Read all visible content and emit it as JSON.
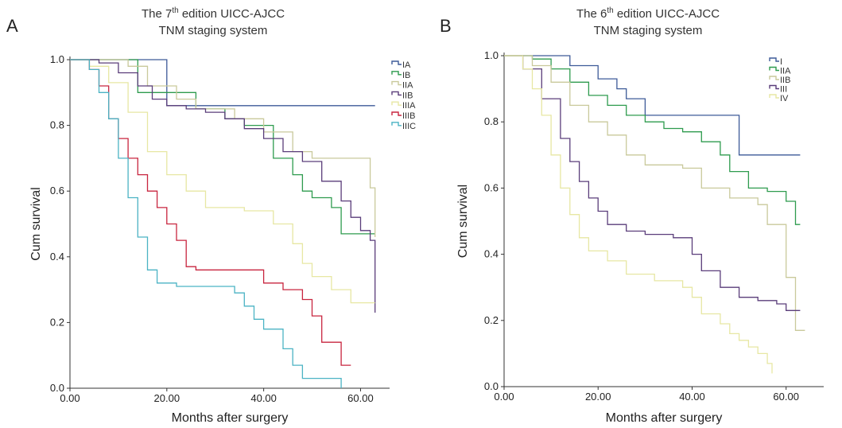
{
  "panels": [
    {
      "letter": "A",
      "title_line1_pre": "The 7",
      "title_sup": "th",
      "title_line1_post": " edition UICC-AJCC",
      "title_line2": "TNM staging system"
    },
    {
      "letter": "B",
      "title_line1_pre": "The 6",
      "title_sup": "th",
      "title_line1_post": " edition UICC-AJCC",
      "title_line2": "TNM staging system"
    }
  ],
  "chart_data": [
    {
      "type": "line",
      "xlabel": "Months after surgery",
      "ylabel": "Cum survival",
      "xlim": [
        0,
        66
      ],
      "ylim": [
        0,
        1.0
      ],
      "x_ticks": [
        "0.00",
        "20.00",
        "40.00",
        "60.00"
      ],
      "x_tick_values": [
        0,
        20,
        40,
        60
      ],
      "y_ticks": [
        "0.0",
        "0.2",
        "0.4",
        "0.6",
        "0.8",
        "1.0"
      ],
      "y_tick_values": [
        0,
        0.2,
        0.4,
        0.6,
        0.8,
        1.0
      ],
      "legend_position": "right",
      "series": [
        {
          "name": "IA",
          "color": "#3d5a98",
          "points": [
            [
              0,
              1.0
            ],
            [
              20,
              1.0
            ],
            [
              20,
              0.86
            ],
            [
              63,
              0.86
            ]
          ]
        },
        {
          "name": "IB",
          "color": "#2e9b4e",
          "points": [
            [
              0,
              1.0
            ],
            [
              14,
              1.0
            ],
            [
              14,
              0.9
            ],
            [
              26,
              0.9
            ],
            [
              26,
              0.85
            ],
            [
              32,
              0.82
            ],
            [
              36,
              0.8
            ],
            [
              42,
              0.8
            ],
            [
              42,
              0.7
            ],
            [
              46,
              0.65
            ],
            [
              48,
              0.6
            ],
            [
              50,
              0.58
            ],
            [
              54,
              0.55
            ],
            [
              56,
              0.47
            ],
            [
              63,
              0.47
            ]
          ]
        },
        {
          "name": "IIA",
          "color": "#c9c99b",
          "points": [
            [
              0,
              1.0
            ],
            [
              12,
              0.98
            ],
            [
              16,
              0.92
            ],
            [
              22,
              0.88
            ],
            [
              26,
              0.85
            ],
            [
              34,
              0.82
            ],
            [
              40,
              0.78
            ],
            [
              46,
              0.72
            ],
            [
              50,
              0.7
            ],
            [
              60,
              0.7
            ],
            [
              62,
              0.61
            ],
            [
              63,
              0.46
            ]
          ]
        },
        {
          "name": "IIB",
          "color": "#5a3d7a",
          "points": [
            [
              0,
              1.0
            ],
            [
              6,
              0.99
            ],
            [
              10,
              0.96
            ],
            [
              14,
              0.92
            ],
            [
              17,
              0.88
            ],
            [
              20,
              0.86
            ],
            [
              24,
              0.85
            ],
            [
              28,
              0.84
            ],
            [
              32,
              0.82
            ],
            [
              36,
              0.79
            ],
            [
              40,
              0.76
            ],
            [
              44,
              0.72
            ],
            [
              48,
              0.69
            ],
            [
              52,
              0.63
            ],
            [
              56,
              0.57
            ],
            [
              58,
              0.52
            ],
            [
              60,
              0.48
            ],
            [
              62,
              0.45
            ],
            [
              63,
              0.23
            ]
          ]
        },
        {
          "name": "IIIA",
          "color": "#e7e7a3",
          "points": [
            [
              0,
              1.0
            ],
            [
              4,
              0.98
            ],
            [
              8,
              0.93
            ],
            [
              12,
              0.84
            ],
            [
              16,
              0.72
            ],
            [
              20,
              0.65
            ],
            [
              24,
              0.6
            ],
            [
              28,
              0.55
            ],
            [
              36,
              0.54
            ],
            [
              40,
              0.54
            ],
            [
              42,
              0.5
            ],
            [
              46,
              0.44
            ],
            [
              48,
              0.38
            ],
            [
              50,
              0.34
            ],
            [
              54,
              0.3
            ],
            [
              58,
              0.26
            ],
            [
              63,
              0.26
            ]
          ]
        },
        {
          "name": "IIIB",
          "color": "#c8253f",
          "points": [
            [
              0,
              1.0
            ],
            [
              4,
              0.97
            ],
            [
              6,
              0.92
            ],
            [
              8,
              0.82
            ],
            [
              10,
              0.76
            ],
            [
              12,
              0.7
            ],
            [
              14,
              0.65
            ],
            [
              16,
              0.6
            ],
            [
              18,
              0.55
            ],
            [
              20,
              0.5
            ],
            [
              22,
              0.45
            ],
            [
              24,
              0.37
            ],
            [
              26,
              0.36
            ],
            [
              40,
              0.36
            ],
            [
              40,
              0.32
            ],
            [
              44,
              0.3
            ],
            [
              48,
              0.27
            ],
            [
              50,
              0.22
            ],
            [
              52,
              0.14
            ],
            [
              56,
              0.14
            ],
            [
              56,
              0.07
            ],
            [
              58,
              0.07
            ]
          ]
        },
        {
          "name": "IIIC",
          "color": "#4bb3c4",
          "points": [
            [
              0,
              1.0
            ],
            [
              4,
              0.97
            ],
            [
              6,
              0.9
            ],
            [
              8,
              0.82
            ],
            [
              10,
              0.7
            ],
            [
              12,
              0.58
            ],
            [
              14,
              0.46
            ],
            [
              16,
              0.36
            ],
            [
              18,
              0.32
            ],
            [
              22,
              0.31
            ],
            [
              30,
              0.31
            ],
            [
              34,
              0.29
            ],
            [
              36,
              0.25
            ],
            [
              38,
              0.21
            ],
            [
              40,
              0.18
            ],
            [
              44,
              0.12
            ],
            [
              46,
              0.07
            ],
            [
              48,
              0.03
            ],
            [
              56,
              0.03
            ],
            [
              56,
              0.0
            ]
          ]
        }
      ]
    },
    {
      "type": "line",
      "xlabel": "Months after surgery",
      "ylabel": "Cum survival",
      "xlim": [
        0,
        68
      ],
      "ylim": [
        0,
        1.0
      ],
      "x_ticks": [
        "0.00",
        "20.00",
        "40.00",
        "60.00"
      ],
      "x_tick_values": [
        0,
        20,
        40,
        60
      ],
      "y_ticks": [
        "0.0",
        "0.2",
        "0.4",
        "0.6",
        "0.8",
        "1.0"
      ],
      "y_tick_values": [
        0,
        0.2,
        0.4,
        0.6,
        0.8,
        1.0
      ],
      "legend_position": "top-right",
      "series": [
        {
          "name": "I",
          "color": "#3d5a98",
          "points": [
            [
              0,
              1.0
            ],
            [
              14,
              1.0
            ],
            [
              14,
              0.97
            ],
            [
              20,
              0.93
            ],
            [
              24,
              0.9
            ],
            [
              26,
              0.87
            ],
            [
              30,
              0.82
            ],
            [
              40,
              0.82
            ],
            [
              42,
              0.82
            ],
            [
              50,
              0.7
            ],
            [
              63,
              0.7
            ]
          ]
        },
        {
          "name": "IIA",
          "color": "#2e9b4e",
          "points": [
            [
              0,
              1.0
            ],
            [
              6,
              0.99
            ],
            [
              10,
              0.96
            ],
            [
              14,
              0.92
            ],
            [
              18,
              0.88
            ],
            [
              22,
              0.85
            ],
            [
              26,
              0.82
            ],
            [
              30,
              0.8
            ],
            [
              34,
              0.78
            ],
            [
              38,
              0.77
            ],
            [
              42,
              0.74
            ],
            [
              46,
              0.7
            ],
            [
              48,
              0.65
            ],
            [
              52,
              0.6
            ],
            [
              56,
              0.59
            ],
            [
              60,
              0.56
            ],
            [
              62,
              0.49
            ],
            [
              63,
              0.49
            ]
          ]
        },
        {
          "name": "IIB",
          "color": "#c9c99b",
          "points": [
            [
              0,
              1.0
            ],
            [
              6,
              0.97
            ],
            [
              10,
              0.92
            ],
            [
              14,
              0.85
            ],
            [
              18,
              0.8
            ],
            [
              22,
              0.76
            ],
            [
              26,
              0.7
            ],
            [
              30,
              0.67
            ],
            [
              38,
              0.66
            ],
            [
              42,
              0.6
            ],
            [
              48,
              0.57
            ],
            [
              54,
              0.55
            ],
            [
              56,
              0.49
            ],
            [
              60,
              0.33
            ],
            [
              62,
              0.17
            ],
            [
              64,
              0.17
            ]
          ]
        },
        {
          "name": "III",
          "color": "#5a3d7a",
          "points": [
            [
              0,
              1.0
            ],
            [
              4,
              0.96
            ],
            [
              8,
              0.87
            ],
            [
              12,
              0.75
            ],
            [
              14,
              0.68
            ],
            [
              16,
              0.62
            ],
            [
              18,
              0.57
            ],
            [
              20,
              0.53
            ],
            [
              22,
              0.49
            ],
            [
              26,
              0.47
            ],
            [
              30,
              0.46
            ],
            [
              36,
              0.45
            ],
            [
              40,
              0.4
            ],
            [
              42,
              0.35
            ],
            [
              46,
              0.3
            ],
            [
              50,
              0.27
            ],
            [
              54,
              0.26
            ],
            [
              58,
              0.25
            ],
            [
              60,
              0.23
            ],
            [
              63,
              0.23
            ]
          ]
        },
        {
          "name": "IV",
          "color": "#e7e7a3",
          "points": [
            [
              0,
              1.0
            ],
            [
              4,
              0.96
            ],
            [
              6,
              0.9
            ],
            [
              8,
              0.82
            ],
            [
              10,
              0.7
            ],
            [
              12,
              0.6
            ],
            [
              14,
              0.52
            ],
            [
              16,
              0.45
            ],
            [
              18,
              0.41
            ],
            [
              22,
              0.38
            ],
            [
              26,
              0.34
            ],
            [
              32,
              0.32
            ],
            [
              38,
              0.3
            ],
            [
              40,
              0.27
            ],
            [
              42,
              0.22
            ],
            [
              46,
              0.19
            ],
            [
              48,
              0.16
            ],
            [
              50,
              0.14
            ],
            [
              52,
              0.12
            ],
            [
              54,
              0.1
            ],
            [
              56,
              0.07
            ],
            [
              57,
              0.04
            ]
          ]
        }
      ]
    }
  ]
}
